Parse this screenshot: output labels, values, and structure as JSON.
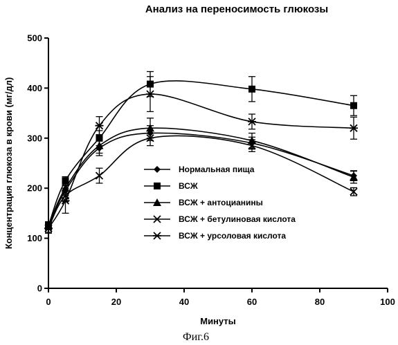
{
  "chart_data": {
    "type": "line",
    "title": "Анализ на переносимость глюкозы",
    "xlabel": "Минуты",
    "ylabel": "Концентрация глюкоза в крови (мг/дл)",
    "xlim": [
      0,
      100
    ],
    "ylim": [
      0,
      500
    ],
    "xticks": [
      0,
      20,
      40,
      60,
      80,
      100
    ],
    "yticks": [
      0,
      100,
      200,
      300,
      400,
      500
    ],
    "x": [
      0,
      5,
      15,
      30,
      60,
      90
    ],
    "legend_position": "center",
    "grid": false,
    "series": [
      {
        "name": "Нормальная пища",
        "marker": "diamond",
        "values": [
          125,
          195,
          280,
          310,
          290,
          225
        ],
        "errors": [
          8,
          10,
          15,
          15,
          12,
          10
        ]
      },
      {
        "name": "ВСЖ",
        "marker": "square",
        "values": [
          125,
          215,
          300,
          408,
          398,
          365
        ],
        "errors": [
          8,
          8,
          15,
          25,
          25,
          20
        ]
      },
      {
        "name": "ВСЖ + антоцианины",
        "marker": "triangle",
        "values": [
          125,
          200,
          285,
          320,
          295,
          222
        ],
        "errors": [
          8,
          10,
          15,
          20,
          15,
          12
        ]
      },
      {
        "name": "ВСЖ + бетулиновая кислота",
        "marker": "x",
        "values": [
          120,
          185,
          225,
          300,
          285,
          193
        ],
        "errors": [
          8,
          12,
          15,
          15,
          12,
          8
        ]
      },
      {
        "name": "ВСЖ + урсоловая кислота",
        "marker": "asterisk",
        "values": [
          120,
          175,
          325,
          388,
          333,
          320
        ],
        "errors": [
          10,
          25,
          18,
          35,
          15,
          22
        ]
      }
    ]
  },
  "caption": "Фиг.6"
}
